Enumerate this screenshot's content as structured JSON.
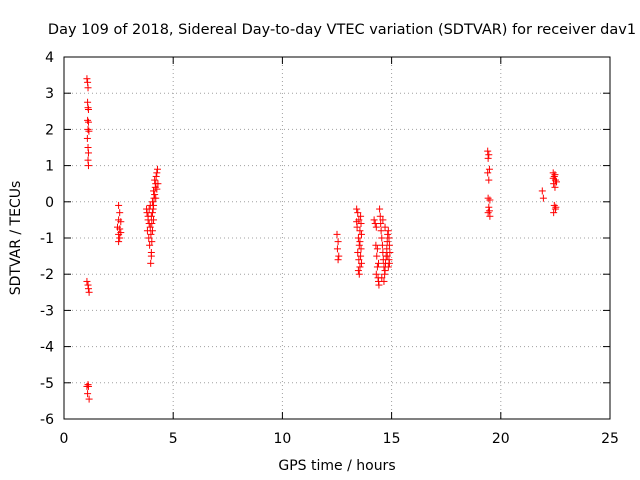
{
  "chart_data": {
    "type": "scatter",
    "title": "Day 109 of 2018, Sidereal Day-to-day VTEC variation (SDTVAR) for receiver dav1",
    "xlabel": "GPS time / hours",
    "ylabel": "SDTVAR / TECUs",
    "xlim": [
      0,
      25
    ],
    "ylim": [
      -6,
      4
    ],
    "xticks": [
      0,
      5,
      10,
      15,
      20,
      25
    ],
    "yticks": [
      -6,
      -5,
      -4,
      -3,
      -2,
      -1,
      0,
      1,
      2,
      3,
      4
    ],
    "xtick_labels": [
      "0",
      "5",
      "10",
      "15",
      "20",
      "25"
    ],
    "ytick_labels": [
      "-6",
      "-5",
      "-4",
      "-3",
      "-2",
      "-1",
      "0",
      "1",
      "2",
      "3",
      "4"
    ],
    "grid": true,
    "marker": "+",
    "marker_color": "#ff0000",
    "series": [
      {
        "name": "SDTVAR",
        "points": [
          [
            1.05,
            3.4
          ],
          [
            1.08,
            3.3
          ],
          [
            1.1,
            3.15
          ],
          [
            1.08,
            2.75
          ],
          [
            1.1,
            2.6
          ],
          [
            1.12,
            2.55
          ],
          [
            1.08,
            2.25
          ],
          [
            1.12,
            2.2
          ],
          [
            1.1,
            2.0
          ],
          [
            1.14,
            1.95
          ],
          [
            1.07,
            1.75
          ],
          [
            1.1,
            1.5
          ],
          [
            1.12,
            1.35
          ],
          [
            1.1,
            1.15
          ],
          [
            1.12,
            1.0
          ],
          [
            1.05,
            -2.2
          ],
          [
            1.1,
            -2.3
          ],
          [
            1.12,
            -2.4
          ],
          [
            1.15,
            -2.5
          ],
          [
            1.05,
            -5.1
          ],
          [
            1.1,
            -5.05
          ],
          [
            1.12,
            -5.1
          ],
          [
            1.08,
            -5.3
          ],
          [
            1.15,
            -5.45
          ],
          [
            2.5,
            -0.1
          ],
          [
            2.55,
            -0.3
          ],
          [
            2.5,
            -0.5
          ],
          [
            2.6,
            -0.55
          ],
          [
            2.45,
            -0.7
          ],
          [
            2.55,
            -0.75
          ],
          [
            2.6,
            -0.85
          ],
          [
            2.5,
            -0.9
          ],
          [
            2.55,
            -1.0
          ],
          [
            2.5,
            -1.1
          ],
          [
            3.8,
            -0.3
          ],
          [
            3.85,
            -0.5
          ],
          [
            3.9,
            -0.6
          ],
          [
            3.82,
            -0.8
          ],
          [
            3.95,
            -0.7
          ],
          [
            3.88,
            -1.0
          ],
          [
            3.92,
            -1.2
          ],
          [
            4.0,
            -1.5
          ],
          [
            3.97,
            -1.7
          ],
          [
            3.9,
            -0.2
          ],
          [
            3.95,
            -0.1
          ],
          [
            4.0,
            -0.4
          ],
          [
            4.02,
            -0.6
          ],
          [
            4.05,
            -0.3
          ],
          [
            4.08,
            -0.2
          ],
          [
            4.1,
            -0.1
          ],
          [
            4.05,
            0.0
          ],
          [
            4.12,
            0.1
          ],
          [
            4.15,
            0.2
          ],
          [
            4.1,
            0.3
          ],
          [
            4.18,
            0.4
          ],
          [
            4.2,
            0.5
          ],
          [
            4.15,
            0.6
          ],
          [
            4.22,
            0.7
          ],
          [
            4.25,
            0.8
          ],
          [
            4.28,
            0.9
          ],
          [
            4.3,
            0.5
          ],
          [
            4.25,
            0.35
          ],
          [
            4.2,
            0.1
          ],
          [
            4.1,
            -0.5
          ],
          [
            4.05,
            -0.8
          ],
          [
            3.98,
            -0.9
          ],
          [
            4.02,
            -1.1
          ],
          [
            4.0,
            -1.4
          ],
          [
            3.85,
            -0.4
          ],
          [
            3.78,
            -0.2
          ],
          [
            12.5,
            -0.9
          ],
          [
            12.55,
            -1.1
          ],
          [
            12.52,
            -1.3
          ],
          [
            12.58,
            -1.5
          ],
          [
            12.55,
            -1.6
          ],
          [
            13.4,
            -0.2
          ],
          [
            13.45,
            -0.3
          ],
          [
            13.5,
            -0.5
          ],
          [
            13.42,
            -0.7
          ],
          [
            13.55,
            -0.8
          ],
          [
            13.48,
            -1.0
          ],
          [
            13.52,
            -1.2
          ],
          [
            13.45,
            -1.4
          ],
          [
            13.5,
            -1.6
          ],
          [
            13.55,
            -1.8
          ],
          [
            13.48,
            -1.9
          ],
          [
            13.52,
            -2.0
          ],
          [
            13.58,
            -0.4
          ],
          [
            13.6,
            -0.6
          ],
          [
            13.62,
            -0.9
          ],
          [
            13.55,
            -1.1
          ],
          [
            13.6,
            -1.3
          ],
          [
            13.58,
            -1.5
          ],
          [
            13.62,
            -1.7
          ],
          [
            13.4,
            -0.55
          ],
          [
            14.2,
            -0.5
          ],
          [
            14.25,
            -0.6
          ],
          [
            14.3,
            -0.7
          ],
          [
            14.28,
            -1.2
          ],
          [
            14.32,
            -1.5
          ],
          [
            14.35,
            -1.8
          ],
          [
            14.3,
            -2.0
          ],
          [
            14.38,
            -2.1
          ],
          [
            14.4,
            -2.2
          ],
          [
            14.42,
            -2.3
          ],
          [
            14.45,
            -0.2
          ],
          [
            14.48,
            -0.4
          ],
          [
            14.5,
            -0.6
          ],
          [
            14.52,
            -0.8
          ],
          [
            14.55,
            -1.0
          ],
          [
            14.58,
            -1.2
          ],
          [
            14.6,
            -1.4
          ],
          [
            14.62,
            -1.6
          ],
          [
            14.65,
            -1.8
          ],
          [
            14.68,
            -2.0
          ],
          [
            14.7,
            -1.9
          ],
          [
            14.72,
            -1.7
          ],
          [
            14.75,
            -1.5
          ],
          [
            14.78,
            -1.3
          ],
          [
            14.8,
            -1.1
          ],
          [
            14.82,
            -0.9
          ],
          [
            14.85,
            -0.8
          ],
          [
            14.88,
            -1.0
          ],
          [
            14.9,
            -1.2
          ],
          [
            14.92,
            -1.4
          ],
          [
            14.88,
            -1.6
          ],
          [
            14.85,
            -1.8
          ],
          [
            14.4,
            -1.7
          ],
          [
            14.35,
            -1.3
          ],
          [
            14.55,
            -2.1
          ],
          [
            14.6,
            -0.5
          ],
          [
            14.7,
            -0.7
          ],
          [
            14.8,
            -1.5
          ],
          [
            14.9,
            -1.7
          ],
          [
            14.65,
            -2.2
          ],
          [
            19.4,
            1.4
          ],
          [
            19.45,
            1.3
          ],
          [
            19.42,
            1.2
          ],
          [
            19.48,
            0.9
          ],
          [
            19.4,
            0.8
          ],
          [
            19.45,
            0.6
          ],
          [
            19.42,
            0.1
          ],
          [
            19.5,
            0.05
          ],
          [
            19.45,
            -0.15
          ],
          [
            19.48,
            -0.25
          ],
          [
            19.42,
            -0.3
          ],
          [
            19.5,
            -0.4
          ],
          [
            21.9,
            0.3
          ],
          [
            21.95,
            0.1
          ],
          [
            22.4,
            0.8
          ],
          [
            22.45,
            0.7
          ],
          [
            22.5,
            0.6
          ],
          [
            22.42,
            0.5
          ],
          [
            22.48,
            0.4
          ],
          [
            22.45,
            -0.1
          ],
          [
            22.5,
            -0.2
          ],
          [
            22.42,
            -0.3
          ],
          [
            22.48,
            0.75
          ],
          [
            22.52,
            -0.15
          ],
          [
            22.55,
            0.55
          ],
          [
            22.4,
            0.65
          ]
        ]
      }
    ]
  }
}
